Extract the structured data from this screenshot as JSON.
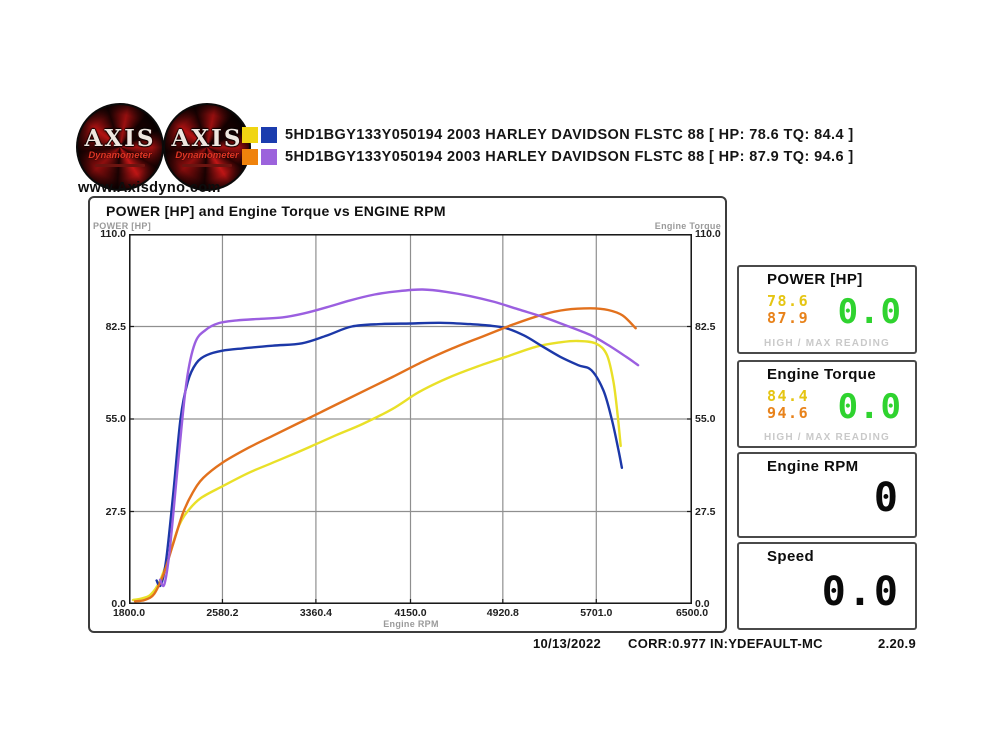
{
  "header": {
    "website": "www.Axisdyno.com",
    "logo": {
      "title": "AXIS",
      "subtitle": "Dynamometer"
    },
    "legend": [
      {
        "swatches": [
          "#f0d512",
          "#1b3cae"
        ],
        "text": "5HD1BGY133Y050194 2003 HARLEY DAVIDSON FLSTC 88 [ HP: 78.6 TQ: 84.4 ]"
      },
      {
        "swatches": [
          "#ef820c",
          "#9c63dc"
        ],
        "text": "5HD1BGY133Y050194 2003 HARLEY DAVIDSON FLSTC 88 [ HP: 87.9 TQ: 94.6 ]"
      }
    ]
  },
  "chart_data": {
    "type": "line",
    "title": "POWER [HP] and Engine Torque vs ENGINE RPM",
    "xlabel": "Engine RPM",
    "ylabel_left": "POWER [HP]",
    "ylabel_right": "Engine Torque",
    "xlim": [
      1800,
      6500
    ],
    "ylim": [
      0,
      110
    ],
    "x_ticks": [
      1800.0,
      2580.2,
      3360.4,
      4150.0,
      4920.8,
      5701.0,
      6500.0
    ],
    "x_tick_labels": [
      "1800.0",
      "2580.2",
      "3360.4",
      "4150.0",
      "4920.8",
      "5701.0",
      "6500.0"
    ],
    "y_ticks": [
      0,
      27.5,
      55,
      82.5,
      110
    ],
    "y_tick_labels": [
      "0.0",
      "27.5",
      "55.0",
      "82.5",
      "110.0"
    ],
    "grid": true,
    "grid_color": "#8f8f8f",
    "border_color": "#1a1a1a",
    "legend_position": "top-outside",
    "series": [
      {
        "name": "Run 1 Power [HP], max 78.6",
        "color": "#e9e028",
        "points": [
          [
            1833,
            1.2
          ],
          [
            1900,
            1.6
          ],
          [
            1980,
            2.8
          ],
          [
            2060,
            7
          ],
          [
            2140,
            15
          ],
          [
            2220,
            23.5
          ],
          [
            2300,
            28
          ],
          [
            2400,
            31.5
          ],
          [
            2580,
            35
          ],
          [
            2800,
            39
          ],
          [
            3000,
            42
          ],
          [
            3200,
            45
          ],
          [
            3360,
            47.5
          ],
          [
            3550,
            50.5
          ],
          [
            3750,
            53.5
          ],
          [
            4000,
            58
          ],
          [
            4220,
            63
          ],
          [
            4450,
            67
          ],
          [
            4700,
            70.5
          ],
          [
            4950,
            73.5
          ],
          [
            5200,
            76.5
          ],
          [
            5400,
            77.8
          ],
          [
            5550,
            78.2
          ],
          [
            5700,
            77.4
          ],
          [
            5790,
            74
          ],
          [
            5845,
            66
          ],
          [
            5880,
            56
          ],
          [
            5905,
            47
          ]
        ]
      },
      {
        "name": "Run 1 Engine Torque, max 84.4",
        "color": "#1c38a8",
        "points": [
          [
            2030,
            7
          ],
          [
            2065,
            5.6
          ],
          [
            2110,
            13
          ],
          [
            2170,
            33
          ],
          [
            2230,
            55
          ],
          [
            2290,
            66
          ],
          [
            2360,
            71.5
          ],
          [
            2450,
            74
          ],
          [
            2580,
            75.3
          ],
          [
            2750,
            76
          ],
          [
            3000,
            76.8
          ],
          [
            3244,
            77.5
          ],
          [
            3450,
            79.8
          ],
          [
            3660,
            82.5
          ],
          [
            3900,
            83.2
          ],
          [
            4150,
            83.4
          ],
          [
            4400,
            83.6
          ],
          [
            4650,
            83.2
          ],
          [
            4800,
            82.8
          ],
          [
            4950,
            82
          ],
          [
            5100,
            79.8
          ],
          [
            5250,
            76.6
          ],
          [
            5400,
            73.5
          ],
          [
            5550,
            71
          ],
          [
            5660,
            69.5
          ],
          [
            5760,
            63.5
          ],
          [
            5830,
            55
          ],
          [
            5885,
            46
          ],
          [
            5915,
            40.5
          ]
        ]
      },
      {
        "name": "Run 2 Power [HP], max 87.9",
        "color": "#e2711d",
        "points": [
          [
            1850,
            0.8
          ],
          [
            1930,
            1.2
          ],
          [
            2010,
            3
          ],
          [
            2090,
            9
          ],
          [
            2170,
            18
          ],
          [
            2250,
            27
          ],
          [
            2330,
            33
          ],
          [
            2420,
            37.5
          ],
          [
            2580,
            42
          ],
          [
            2800,
            46.5
          ],
          [
            3000,
            50
          ],
          [
            3200,
            53.5
          ],
          [
            3400,
            57
          ],
          [
            3600,
            60.5
          ],
          [
            3800,
            64
          ],
          [
            4000,
            67.5
          ],
          [
            4250,
            72
          ],
          [
            4500,
            76
          ],
          [
            4750,
            79.5
          ],
          [
            5000,
            83
          ],
          [
            5250,
            86
          ],
          [
            5450,
            87.5
          ],
          [
            5650,
            87.9
          ],
          [
            5800,
            87.4
          ],
          [
            5920,
            85.8
          ],
          [
            6030,
            82
          ]
        ]
      },
      {
        "name": "Run 2 Engine Torque, max 94.6",
        "color": "#9b5fe0",
        "points": [
          [
            2060,
            7.2
          ],
          [
            2095,
            5.8
          ],
          [
            2140,
            16
          ],
          [
            2210,
            42
          ],
          [
            2280,
            66
          ],
          [
            2350,
            77.5
          ],
          [
            2440,
            81.5
          ],
          [
            2550,
            83.5
          ],
          [
            2700,
            84.3
          ],
          [
            2900,
            84.8
          ],
          [
            3080,
            85.2
          ],
          [
            3250,
            86.3
          ],
          [
            3450,
            88.2
          ],
          [
            3650,
            90.3
          ],
          [
            3850,
            92
          ],
          [
            4050,
            93
          ],
          [
            4250,
            93.5
          ],
          [
            4450,
            92.8
          ],
          [
            4650,
            91.5
          ],
          [
            4850,
            89.8
          ],
          [
            5050,
            87.6
          ],
          [
            5250,
            85.4
          ],
          [
            5450,
            82.8
          ],
          [
            5650,
            80
          ],
          [
            5800,
            77
          ],
          [
            5950,
            73.5
          ],
          [
            6050,
            71
          ]
        ]
      }
    ]
  },
  "gauges": [
    {
      "title": "POWER [HP]",
      "values": [
        {
          "text": "78.6",
          "color": "#e5c513"
        },
        {
          "text": "87.9",
          "color": "#e8821a"
        }
      ],
      "live": "0.0",
      "live_color": "#2fd32f",
      "footnote": "HIGH / MAX READING"
    },
    {
      "title": "Engine Torque",
      "values": [
        {
          "text": "84.4",
          "color": "#e5c513"
        },
        {
          "text": "94.6",
          "color": "#e8821a"
        }
      ],
      "live": "0.0",
      "live_color": "#2fd32f",
      "footnote": "HIGH / MAX READING"
    },
    {
      "title": "Engine RPM",
      "big": "0"
    },
    {
      "title": "Speed",
      "big": "0.0"
    }
  ],
  "footer": {
    "date": "10/13/2022",
    "correction": "CORR:0.977 IN:Y",
    "profile": "DEFAULT-MC",
    "version": "2.20.9"
  }
}
